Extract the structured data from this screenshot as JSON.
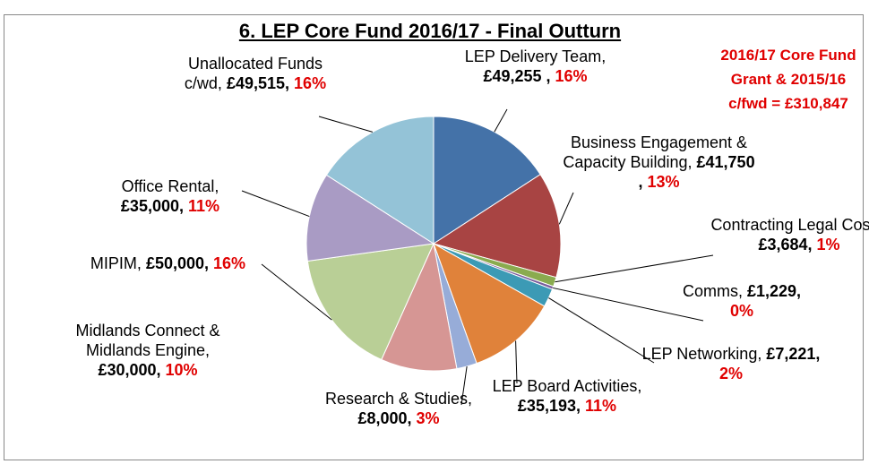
{
  "chart_data": {
    "type": "pie",
    "title": "6. LEP Core Fund 2016/17 - Final Outturn",
    "annotation": "2016/17 Core Fund Grant & 2015/16 c/fwd = £310,847",
    "categories": [
      "LEP Delivery Team,",
      "Business Engagement & Capacity Building,",
      "Contracting Legal Costs,",
      "Comms,",
      "LEP Networking,",
      "LEP Board Activities,",
      "Research & Studies,",
      "Midlands Connect & Midlands Engine,",
      "MIPIM,",
      "Office Rental,",
      "Unallocated Funds c/wd,"
    ],
    "values": [
      49255,
      41750,
      3684,
      1229,
      7221,
      35193,
      8000,
      30000,
      50000,
      35000,
      49515
    ],
    "value_labels": [
      "£49,255 ,",
      "£41,750 ,",
      "£3,684,",
      "£1,229,",
      "£7,221,",
      "£35,193,",
      "£8,000,",
      "£30,000,",
      "£50,000,",
      "£35,000,",
      "£49,515,"
    ],
    "percent_labels": [
      "16%",
      "13%",
      "1%",
      "0%",
      "2%",
      "11%",
      "3%",
      "10%",
      "16%",
      "11%",
      "16%"
    ],
    "colors": [
      "#4472a8",
      "#a84443",
      "#8aab4f",
      "#7a5d9c",
      "#3c9ab5",
      "#e0823a",
      "#97acd8",
      "#d69694",
      "#b9cf96",
      "#a99bc4",
      "#94c3d7"
    ]
  }
}
